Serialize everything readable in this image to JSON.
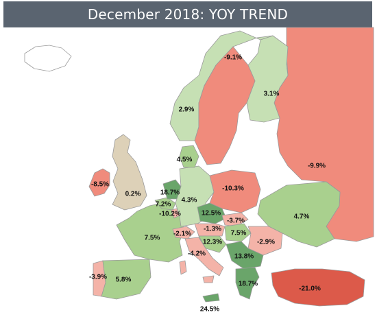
{
  "title": "December 2018: YOY TREND",
  "colors": {
    "title_bg": "#5a6470",
    "strong_positive": "#6aa56a",
    "positive": "#a9d08e",
    "light_positive": "#c6e0b4",
    "neutral": "#ddd1b8",
    "light_negative": "#f4b3a8",
    "negative": "#f08b7c",
    "strong_negative": "#dc5a4a",
    "no_data": "#ffffff",
    "border": "#9a9a9a"
  },
  "regions": [
    {
      "id": "iceland",
      "label": ""
    },
    {
      "id": "norway",
      "label": "2.9%"
    },
    {
      "id": "sweden",
      "label": "-9.1%"
    },
    {
      "id": "finland",
      "label": "3.1%"
    },
    {
      "id": "russia",
      "label": "-9.9%"
    },
    {
      "id": "denmark",
      "label": "4.5%"
    },
    {
      "id": "ireland",
      "label": "-8.5%"
    },
    {
      "id": "uk",
      "label": "0.2%"
    },
    {
      "id": "netherlands",
      "label": "18.7%"
    },
    {
      "id": "belgium",
      "label": "7.2%"
    },
    {
      "id": "luxembourg",
      "label": "-10.2%"
    },
    {
      "id": "germany",
      "label": "4.3%"
    },
    {
      "id": "poland",
      "label": "-10.3%"
    },
    {
      "id": "czechia",
      "label": "12.5%"
    },
    {
      "id": "slovakia",
      "label": "-3.7%"
    },
    {
      "id": "austria",
      "label": "-1.3%"
    },
    {
      "id": "hungary",
      "label": "7.5%"
    },
    {
      "id": "ukraine",
      "label": "4.7%"
    },
    {
      "id": "romania",
      "label": "-2.9%"
    },
    {
      "id": "france",
      "label": "7.5%"
    },
    {
      "id": "switzerland",
      "label": "-2.1%"
    },
    {
      "id": "slovenia-croatia",
      "label": "12.3%"
    },
    {
      "id": "italy",
      "label": "-4.2%"
    },
    {
      "id": "serbia-bulgaria",
      "label": "13.8%"
    },
    {
      "id": "portugal",
      "label": "-3.9%"
    },
    {
      "id": "spain",
      "label": "5.8%"
    },
    {
      "id": "greece",
      "label": "18.7%"
    },
    {
      "id": "turkey",
      "label": "-21.0%"
    },
    {
      "id": "cyprus",
      "label": "24.5%"
    }
  ]
}
